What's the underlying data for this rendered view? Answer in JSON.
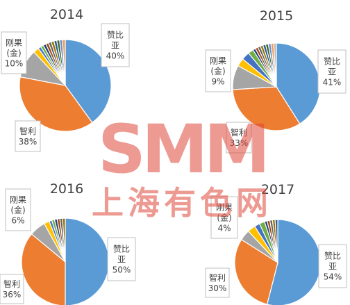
{
  "chart_data": [
    {
      "type": "pie",
      "title": "2014",
      "slices": [
        {
          "label_lines": [
            "赞比",
            "亚",
            "40%"
          ],
          "value": 40,
          "color": "#5b9bd5"
        },
        {
          "label_lines": [
            "智利",
            "38%"
          ],
          "value": 38,
          "color": "#ed7d31"
        },
        {
          "label_lines": [
            "刚果",
            "(金)",
            "10%"
          ],
          "value": 10,
          "color": "#a5a5a5"
        },
        {
          "label_lines": [],
          "value": 2,
          "color": "#ffc000"
        },
        {
          "label_lines": [],
          "value": 1,
          "color": "#4472c4"
        },
        {
          "label_lines": [],
          "value": 1,
          "color": "#70ad47"
        },
        {
          "label_lines": [],
          "value": 1,
          "color": "#264478"
        },
        {
          "label_lines": [],
          "value": 1,
          "color": "#9e480e"
        },
        {
          "label_lines": [],
          "value": 1,
          "color": "#636363"
        },
        {
          "label_lines": [],
          "value": 1,
          "color": "#997300"
        },
        {
          "label_lines": [],
          "value": 1,
          "color": "#255e91"
        },
        {
          "label_lines": [],
          "value": 1,
          "color": "#43682b"
        },
        {
          "label_lines": [],
          "value": 1,
          "color": "#698ed0"
        },
        {
          "label_lines": [],
          "value": 1,
          "color": "#f1975a"
        }
      ]
    },
    {
      "type": "pie",
      "title": "2015",
      "slices": [
        {
          "label_lines": [
            "赞比",
            "亚",
            "41%"
          ],
          "value": 41,
          "color": "#5b9bd5"
        },
        {
          "label_lines": [
            "智利",
            "33%"
          ],
          "value": 33,
          "color": "#ed7d31"
        },
        {
          "label_lines": [
            "刚果",
            "(金)",
            "9%"
          ],
          "value": 9,
          "color": "#a5a5a5"
        },
        {
          "label_lines": [],
          "value": 3,
          "color": "#ffc000"
        },
        {
          "label_lines": [],
          "value": 3,
          "color": "#4472c4"
        },
        {
          "label_lines": [],
          "value": 2,
          "color": "#70ad47"
        },
        {
          "label_lines": [],
          "value": 1,
          "color": "#264478"
        },
        {
          "label_lines": [],
          "value": 1,
          "color": "#9e480e"
        },
        {
          "label_lines": [],
          "value": 1,
          "color": "#636363"
        },
        {
          "label_lines": [],
          "value": 1,
          "color": "#997300"
        },
        {
          "label_lines": [],
          "value": 1,
          "color": "#255e91"
        },
        {
          "label_lines": [],
          "value": 1,
          "color": "#43682b"
        },
        {
          "label_lines": [],
          "value": 1,
          "color": "#698ed0"
        },
        {
          "label_lines": [],
          "value": 1,
          "color": "#f1975a"
        },
        {
          "label_lines": [],
          "value": 1,
          "color": "#b7b7b7"
        }
      ]
    },
    {
      "type": "pie",
      "title": "2016",
      "slices": [
        {
          "label_lines": [
            "赞比",
            "亚",
            "50%"
          ],
          "value": 50,
          "color": "#5b9bd5"
        },
        {
          "label_lines": [
            "智利",
            "36%"
          ],
          "value": 36,
          "color": "#ed7d31"
        },
        {
          "label_lines": [
            "刚果",
            "(金)",
            "6%"
          ],
          "value": 6,
          "color": "#a5a5a5"
        },
        {
          "label_lines": [],
          "value": 2,
          "color": "#ffc000"
        },
        {
          "label_lines": [],
          "value": 1,
          "color": "#4472c4"
        },
        {
          "label_lines": [],
          "value": 1,
          "color": "#70ad47"
        },
        {
          "label_lines": [],
          "value": 1,
          "color": "#264478"
        },
        {
          "label_lines": [],
          "value": 1,
          "color": "#9e480e"
        },
        {
          "label_lines": [],
          "value": 1,
          "color": "#636363"
        },
        {
          "label_lines": [],
          "value": 1,
          "color": "#997300"
        }
      ]
    },
    {
      "type": "pie",
      "title": "2017",
      "slices": [
        {
          "label_lines": [
            "赞比",
            "亚",
            "54%"
          ],
          "value": 54,
          "color": "#5b9bd5"
        },
        {
          "label_lines": [
            "智利",
            "30%"
          ],
          "value": 30,
          "color": "#ed7d31"
        },
        {
          "label_lines": [
            "刚果",
            "(金)",
            "4%"
          ],
          "value": 4,
          "color": "#a5a5a5"
        },
        {
          "label_lines": [],
          "value": 3,
          "color": "#ffc000"
        },
        {
          "label_lines": [],
          "value": 2,
          "color": "#4472c4"
        },
        {
          "label_lines": [],
          "value": 2,
          "color": "#70ad47"
        },
        {
          "label_lines": [],
          "value": 1,
          "color": "#264478"
        },
        {
          "label_lines": [],
          "value": 1,
          "color": "#9e480e"
        },
        {
          "label_lines": [],
          "value": 1,
          "color": "#636363"
        },
        {
          "label_lines": [],
          "value": 1,
          "color": "#997300"
        },
        {
          "label_lines": [],
          "value": 1,
          "color": "#255e91"
        }
      ]
    }
  ],
  "watermark": {
    "logo": "SMM",
    "text": "上海有色网",
    "color": "#e0483a"
  }
}
